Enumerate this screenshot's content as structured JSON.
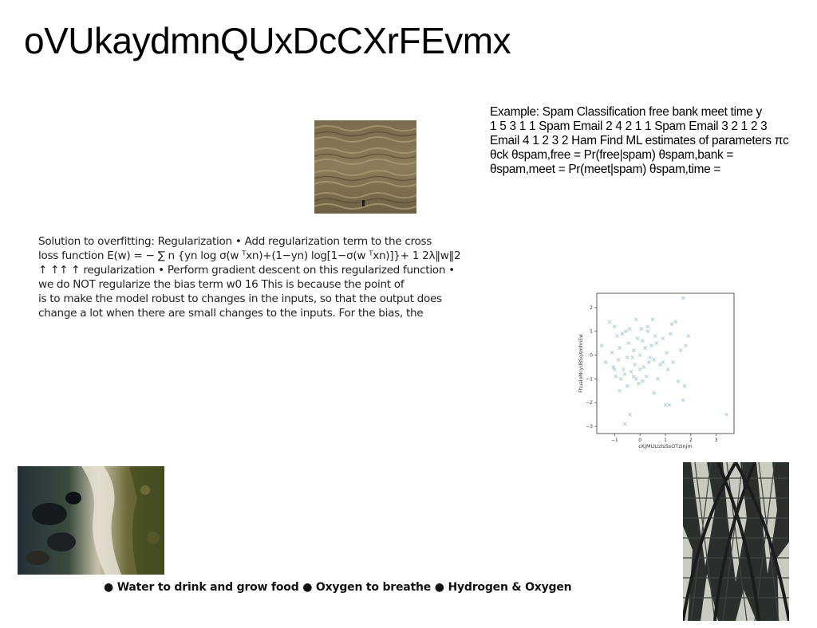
{
  "title": "oVUkaydmnQUxDcCXrFEvmx",
  "spam_text": {
    "lines": [
      "Example: Spam Classification free bank meet time y",
      "1 5 3 1 1 Spam Email 2 4 2 1 1 Spam Email 3 2 1 2 3",
      "Email 4 1 2 3 2 Ham Find ML estimates of parameters πc",
      "θck θspam,free = Pr(free|spam) θspam,bank =",
      "θspam,meet = Pr(meet|spam) θspam,time ="
    ]
  },
  "regularization_text": {
    "lines": [
      "Solution to overfitting: Regularization • Add regularization term to the cross",
      "loss function E(w) = − ∑ n {yn log σ(w ᵀxn)+(1−yn) log[1−σ(w ᵀxn)]}+ 1 2λ‖w‖2",
      "↑ ↑↑ ↑ regularization • Perform gradient descent on this regularized function •",
      "we do NOT regularize the bias term w0 16 This is because the point of",
      "is to make the model robust to changes in the inputs, so that the output does",
      "change a lot when there are small changes to the inputs. For the bias, the"
    ]
  },
  "bullets_text": "● Water to drink and grow food ● Oxygen to breathe ● Hydrogen & Oxygen",
  "images": {
    "water": "water-surface-photo",
    "coast": "rocky-coastline-photo",
    "arch": "arched-lattice-ceiling-photo"
  },
  "chart_data": {
    "type": "scatter",
    "title": "",
    "xlabel": "cKjMUUzlsSsOTzinjm",
    "ylabel": "FhuaioMcydBSqXmhnEw",
    "xlim": [
      -1.7,
      3.7
    ],
    "ylim": [
      -3.3,
      2.6
    ],
    "xticks": [
      "−1",
      "0",
      "1",
      "2",
      "3"
    ],
    "yticks": [
      "−3",
      "−2",
      "−1",
      "0",
      "1",
      "2"
    ],
    "marker": "x",
    "color": "#a9ccd8",
    "grid": false,
    "x": [
      -1.5,
      -1.35,
      -1.2,
      -1.1,
      -1.05,
      -1.0,
      -0.95,
      -0.9,
      -0.85,
      -0.8,
      -0.75,
      -0.7,
      -0.65,
      -0.6,
      -0.55,
      -0.5,
      -0.45,
      -0.4,
      -0.35,
      -0.3,
      -0.25,
      -0.2,
      -0.15,
      -0.1,
      -0.05,
      0.0,
      0.05,
      0.1,
      0.15,
      0.2,
      0.25,
      0.3,
      0.35,
      0.4,
      0.45,
      0.5,
      0.55,
      0.6,
      0.7,
      0.8,
      0.9,
      1.0,
      1.05,
      1.1,
      1.2,
      1.3,
      1.4,
      1.5,
      1.6,
      1.7,
      1.75,
      1.8,
      1.9,
      3.4,
      -0.4,
      -0.6,
      0.1,
      1.15,
      -1.0,
      0.55,
      -0.25,
      1.7,
      -0.8,
      0.0,
      0.3,
      0.9,
      -0.5,
      1.25,
      0.65,
      -0.15
    ],
    "y": [
      0.4,
      -0.3,
      1.4,
      0.1,
      -0.5,
      1.2,
      -0.9,
      0.8,
      -0.2,
      0.3,
      -1.0,
      0.9,
      -0.6,
      -0.8,
      1.0,
      -1.3,
      0.5,
      1.1,
      -0.7,
      -0.1,
      0.2,
      -0.4,
      1.5,
      0.7,
      -1.2,
      0.0,
      1.1,
      0.6,
      -0.5,
      0.3,
      -0.9,
      1.0,
      -0.3,
      -0.1,
      0.4,
      1.5,
      -1.6,
      0.8,
      -1.0,
      -0.4,
      0.7,
      -2.1,
      0.1,
      -0.6,
      0.9,
      -0.3,
      1.4,
      -1.1,
      0.2,
      2.4,
      -1.3,
      0.4,
      0.8,
      -2.5,
      -2.5,
      -2.9,
      -1.1,
      -2.1,
      -0.6,
      -0.2,
      -0.9,
      -1.9,
      -1.5,
      -0.6,
      1.2,
      -0.3,
      -0.1,
      1.3,
      0.5,
      -1.0
    ]
  }
}
